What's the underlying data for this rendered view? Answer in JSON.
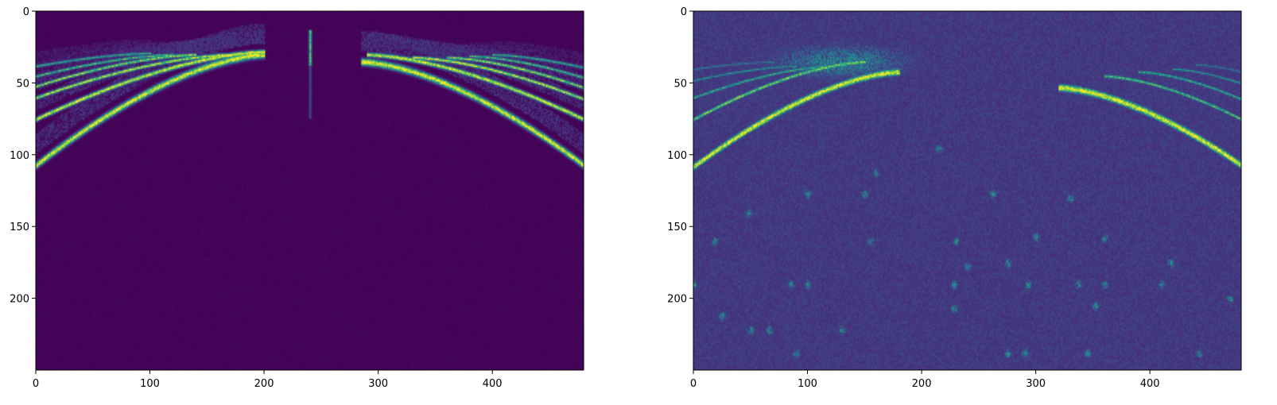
{
  "chart_data": [
    {
      "type": "heatmap",
      "title": "",
      "xlabel": "",
      "ylabel": "",
      "colormap": "viridis",
      "image_shape": [
        250,
        480
      ],
      "xlim": [
        0,
        480
      ],
      "ylim": [
        250,
        0
      ],
      "x_ticks": [
        0,
        100,
        200,
        300,
        400
      ],
      "y_ticks": [
        0,
        50,
        100,
        150,
        200
      ],
      "grid": false,
      "features": {
        "description_note": "",
        "background_level": 0.0,
        "noise_level": 0.02,
        "arcs_left": [
          {
            "x_start": 0,
            "y_start": 107,
            "x_end": 200,
            "y_end": 30,
            "intensity": 1.0,
            "width": 2.2
          },
          {
            "x_start": 0,
            "y_start": 75,
            "x_end": 200,
            "y_end": 28,
            "intensity": 1.0,
            "width": 1.4
          },
          {
            "x_start": 0,
            "y_start": 60,
            "x_end": 170,
            "y_end": 30,
            "intensity": 0.95,
            "width": 1.1
          },
          {
            "x_start": 0,
            "y_start": 52,
            "x_end": 140,
            "y_end": 30,
            "intensity": 0.85,
            "width": 1.0
          },
          {
            "x_start": 0,
            "y_start": 45,
            "x_end": 120,
            "y_end": 30,
            "intensity": 0.7,
            "width": 0.9
          },
          {
            "x_start": 0,
            "y_start": 38,
            "x_end": 100,
            "y_end": 29,
            "intensity": 0.6,
            "width": 0.9
          }
        ],
        "arcs_right": [
          {
            "x_start": 480,
            "y_start": 107,
            "x_end": 285,
            "y_end": 35,
            "intensity": 1.0,
            "width": 2.2
          },
          {
            "x_start": 480,
            "y_start": 75,
            "x_end": 290,
            "y_end": 30,
            "intensity": 1.0,
            "width": 1.4
          },
          {
            "x_start": 480,
            "y_start": 61,
            "x_end": 330,
            "y_end": 32,
            "intensity": 0.95,
            "width": 1.1
          },
          {
            "x_start": 480,
            "y_start": 53,
            "x_end": 360,
            "y_end": 32,
            "intensity": 0.85,
            "width": 1.0
          },
          {
            "x_start": 480,
            "y_start": 46,
            "x_end": 380,
            "y_end": 31,
            "intensity": 0.7,
            "width": 0.9
          },
          {
            "x_start": 480,
            "y_start": 39,
            "x_end": 400,
            "y_end": 30,
            "intensity": 0.6,
            "width": 0.9
          }
        ],
        "center_spike": {
          "x": 240,
          "y_top": 13,
          "y_bottom": 75,
          "intensity": 0.9
        },
        "blobs": []
      }
    },
    {
      "type": "heatmap",
      "title": "",
      "xlabel": "",
      "ylabel": "",
      "colormap": "viridis",
      "image_shape": [
        250,
        480
      ],
      "xlim": [
        0,
        480
      ],
      "ylim": [
        250,
        0
      ],
      "x_ticks": [
        0,
        100,
        200,
        300,
        400
      ],
      "y_ticks": [
        0,
        50,
        100,
        150,
        200
      ],
      "grid": false,
      "features": {
        "background_level": 0.12,
        "noise_level": 0.1,
        "arcs_left": [
          {
            "x_start": 0,
            "y_start": 108,
            "x_end": 180,
            "y_end": 42,
            "intensity": 1.0,
            "width": 2.2
          },
          {
            "x_start": 0,
            "y_start": 75,
            "x_end": 150,
            "y_end": 35,
            "intensity": 0.8,
            "width": 1.2
          },
          {
            "x_start": 0,
            "y_start": 60,
            "x_end": 120,
            "y_end": 38,
            "intensity": 0.6,
            "width": 1.0
          },
          {
            "x_start": 0,
            "y_start": 48,
            "x_end": 90,
            "y_end": 38,
            "intensity": 0.5,
            "width": 0.9
          },
          {
            "x_start": 0,
            "y_start": 40,
            "x_end": 70,
            "y_end": 35,
            "intensity": 0.4,
            "width": 0.9
          }
        ],
        "arcs_right": [
          {
            "x_start": 480,
            "y_start": 107,
            "x_end": 320,
            "y_end": 53,
            "intensity": 1.0,
            "width": 2.4
          },
          {
            "x_start": 480,
            "y_start": 75,
            "x_end": 360,
            "y_end": 45,
            "intensity": 0.7,
            "width": 1.1
          },
          {
            "x_start": 480,
            "y_start": 61,
            "x_end": 390,
            "y_end": 42,
            "intensity": 0.6,
            "width": 1.0
          },
          {
            "x_start": 480,
            "y_start": 50,
            "x_end": 420,
            "y_end": 40,
            "intensity": 0.5,
            "width": 0.9
          },
          {
            "x_start": 480,
            "y_start": 42,
            "x_end": 440,
            "y_end": 37,
            "intensity": 0.4,
            "width": 0.9
          }
        ],
        "center_spike": null,
        "haze": {
          "x": 130,
          "y": 35,
          "rx": 70,
          "ry": 14,
          "intensity": 0.45
        },
        "blobs": [
          [
            215,
            95
          ],
          [
            160,
            112
          ],
          [
            150,
            127
          ],
          [
            262,
            127
          ],
          [
            100,
            127
          ],
          [
            330,
            130
          ],
          [
            300,
            157
          ],
          [
            230,
            160
          ],
          [
            360,
            158
          ],
          [
            155,
            160
          ],
          [
            275,
            175
          ],
          [
            418,
            175
          ],
          [
            240,
            178
          ],
          [
            228,
            190
          ],
          [
            293,
            190
          ],
          [
            337,
            190
          ],
          [
            360,
            190
          ],
          [
            410,
            190
          ],
          [
            85,
            190
          ],
          [
            100,
            190
          ],
          [
            352,
            205
          ],
          [
            228,
            207
          ],
          [
            25,
            212
          ],
          [
            50,
            222
          ],
          [
            66,
            222
          ],
          [
            130,
            222
          ],
          [
            90,
            238
          ],
          [
            275,
            238
          ],
          [
            345,
            238
          ],
          [
            290,
            238
          ],
          [
            443,
            238
          ],
          [
            0,
            190
          ],
          [
            18,
            160
          ],
          [
            48,
            140
          ],
          [
            120,
            255
          ],
          [
            470,
            200
          ]
        ]
      }
    }
  ]
}
